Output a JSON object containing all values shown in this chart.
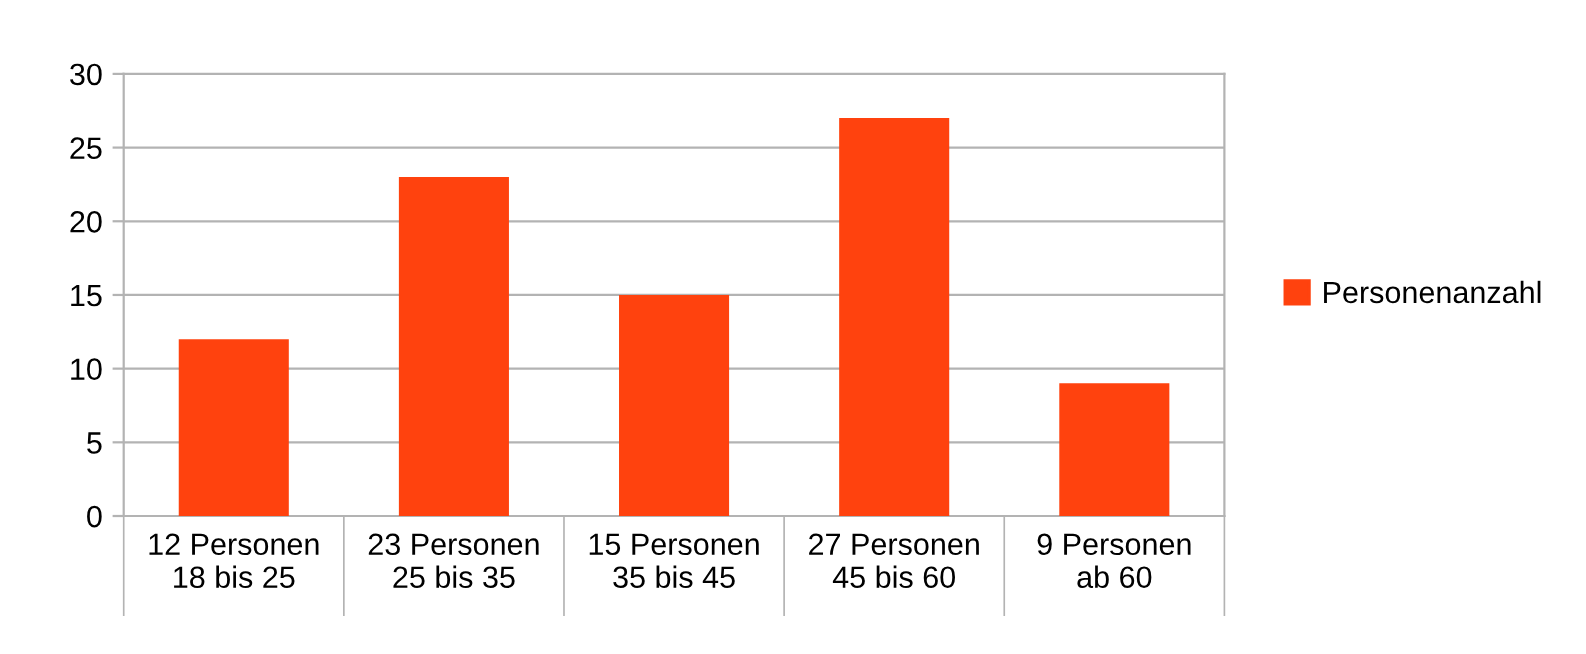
{
  "chart_data": {
    "type": "bar",
    "categories": [
      "12 Personen\n18 bis 25",
      "23 Personen\n25 bis 35",
      "15 Personen\n35 bis 45",
      "27 Personen\n45 bis 60",
      "9 Personen\nab 60"
    ],
    "series": [
      {
        "name": "Personenanzahl",
        "color": "#ff420e",
        "values": [
          12,
          23,
          15,
          27,
          9
        ]
      }
    ],
    "ylim": [
      0,
      30
    ],
    "yticks": [
      0,
      5,
      10,
      15,
      20,
      25,
      30
    ],
    "grid": "y",
    "legend": "right"
  }
}
